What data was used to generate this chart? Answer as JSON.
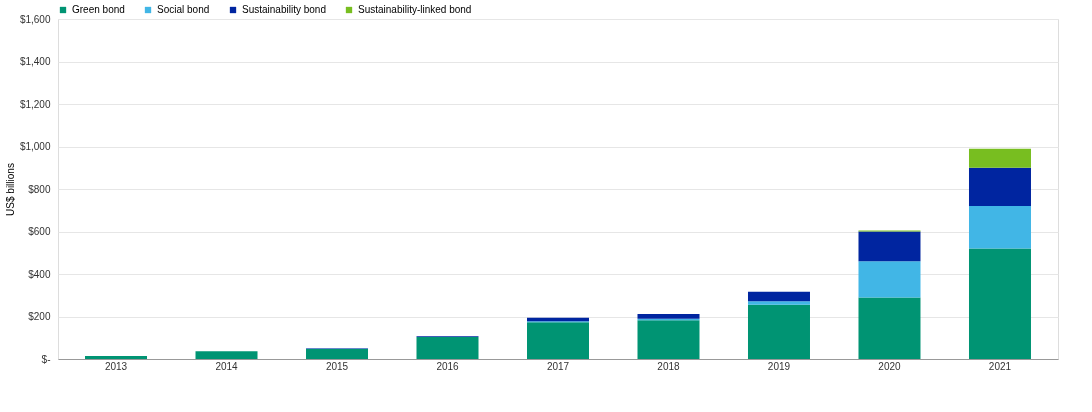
{
  "chart_data": {
    "type": "bar",
    "stacked": true,
    "ylabel": "US$ billions",
    "categories": [
      "2013",
      "2014",
      "2015",
      "2016",
      "2017",
      "2018",
      "2019",
      "2020",
      "2021"
    ],
    "series": [
      {
        "name": "Green bond",
        "color": "#009473",
        "values": [
          14,
          37,
          47,
          103,
          173,
          182,
          255,
          290,
          520
        ]
      },
      {
        "name": "Social bond",
        "color": "#41b6e6",
        "values": [
          null,
          null,
          1,
          null,
          5,
          8,
          17,
          170,
          200
        ]
      },
      {
        "name": "Sustainability bond",
        "color": "#0025a0",
        "values": [
          null,
          null,
          3,
          4,
          16,
          22,
          45,
          140,
          180
        ]
      },
      {
        "name": "Sustainability-linked bond",
        "color": "#78be20",
        "values": [
          null,
          null,
          null,
          null,
          null,
          null,
          null,
          5,
          90
        ]
      }
    ],
    "ylim": [
      0,
      1600
    ],
    "yticks": [
      {
        "value": 0,
        "label": "$-"
      },
      {
        "value": 200,
        "label": "$200"
      },
      {
        "value": 400,
        "label": "$400"
      },
      {
        "value": 600,
        "label": "$600"
      },
      {
        "value": 800,
        "label": "$800"
      },
      {
        "value": 1000,
        "label": "$1,000"
      },
      {
        "value": 1200,
        "label": "$1,200"
      },
      {
        "value": 1400,
        "label": "$1,400"
      },
      {
        "value": 1600,
        "label": "$1,600"
      }
    ],
    "grid": "y",
    "legend": "top left"
  }
}
